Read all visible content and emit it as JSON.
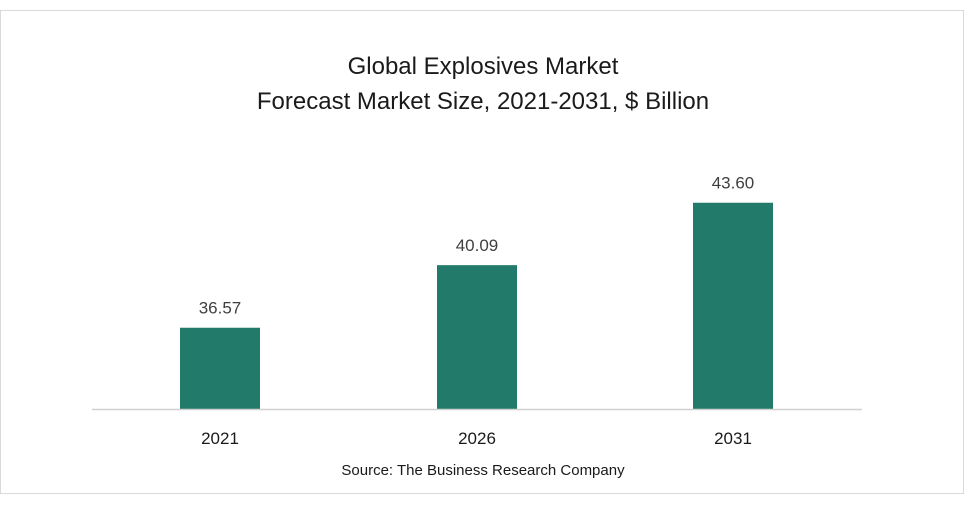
{
  "chart_data": {
    "type": "bar",
    "title": "Global Explosives Market",
    "subtitle": "Forecast Market Size, 2021-2031, $ Billion",
    "categories": [
      "2021",
      "2026",
      "2031"
    ],
    "values": [
      36.57,
      40.09,
      43.6
    ],
    "value_labels": [
      "36.57",
      "40.09",
      "43.60"
    ],
    "source": "Source: The Business Research Company",
    "bar_color": "#217a6a",
    "xlabel": "",
    "ylabel": "",
    "grid": false,
    "legend": "none"
  }
}
